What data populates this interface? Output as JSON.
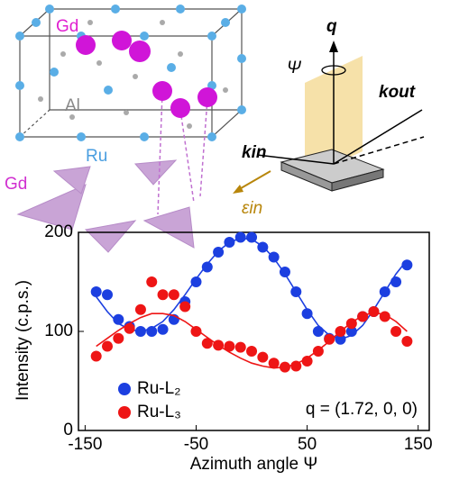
{
  "chart_data": {
    "type": "scatter",
    "x": [
      -140,
      -130,
      -120,
      -110,
      -100,
      -90,
      -80,
      -70,
      -60,
      -50,
      -40,
      -30,
      -20,
      -10,
      0,
      10,
      20,
      30,
      40,
      50,
      60,
      70,
      80,
      90,
      100,
      110,
      120,
      130,
      140
    ],
    "series": [
      {
        "name": "Ru-L₂",
        "color": "#1c3fe0",
        "values": [
          140,
          137,
          112,
          105,
          100,
          100,
          102,
          112,
          130,
          150,
          165,
          180,
          190,
          195,
          195,
          185,
          175,
          160,
          140,
          118,
          100,
          93,
          92,
          100,
          115,
          120,
          140,
          150,
          167
        ],
        "fit": [
          135,
          120,
          108,
          102,
          100,
          103,
          110,
          122,
          137,
          153,
          168,
          181,
          190,
          194,
          193,
          186,
          174,
          158,
          140,
          122,
          106,
          96,
          92,
          96,
          106,
          122,
          140,
          158,
          172
        ]
      },
      {
        "name": "Ru-L₃",
        "color": "#ee1515",
        "values": [
          75,
          85,
          93,
          103,
          122,
          150,
          137,
          137,
          125,
          100,
          88,
          86,
          85,
          84,
          80,
          74,
          68,
          64,
          65,
          70,
          80,
          92,
          100,
          108,
          115,
          120,
          115,
          100,
          90
        ],
        "fit": [
          85,
          93,
          101,
          108,
          114,
          118,
          118,
          116,
          110,
          102,
          94,
          86,
          79,
          73,
          68,
          65,
          63,
          64,
          67,
          73,
          81,
          90,
          100,
          109,
          116,
          119,
          117,
          110,
          100
        ]
      }
    ],
    "xlim": [
      -156,
      160
    ],
    "ylim": [
      0,
      200
    ],
    "xticks": [
      -150,
      -50,
      50,
      150
    ],
    "yticks": [
      0,
      100,
      200
    ],
    "xlabel": "Azimuth angle Ψ",
    "ylabel": "Intensity (c.p.s.)",
    "annotation": "q = (1.72, 0, 0)"
  },
  "diagram": {
    "labels": [
      "Gd",
      "Al",
      "Ru",
      "Gd",
      "q",
      "Ψ",
      "kout",
      "kin",
      "εin"
    ]
  }
}
